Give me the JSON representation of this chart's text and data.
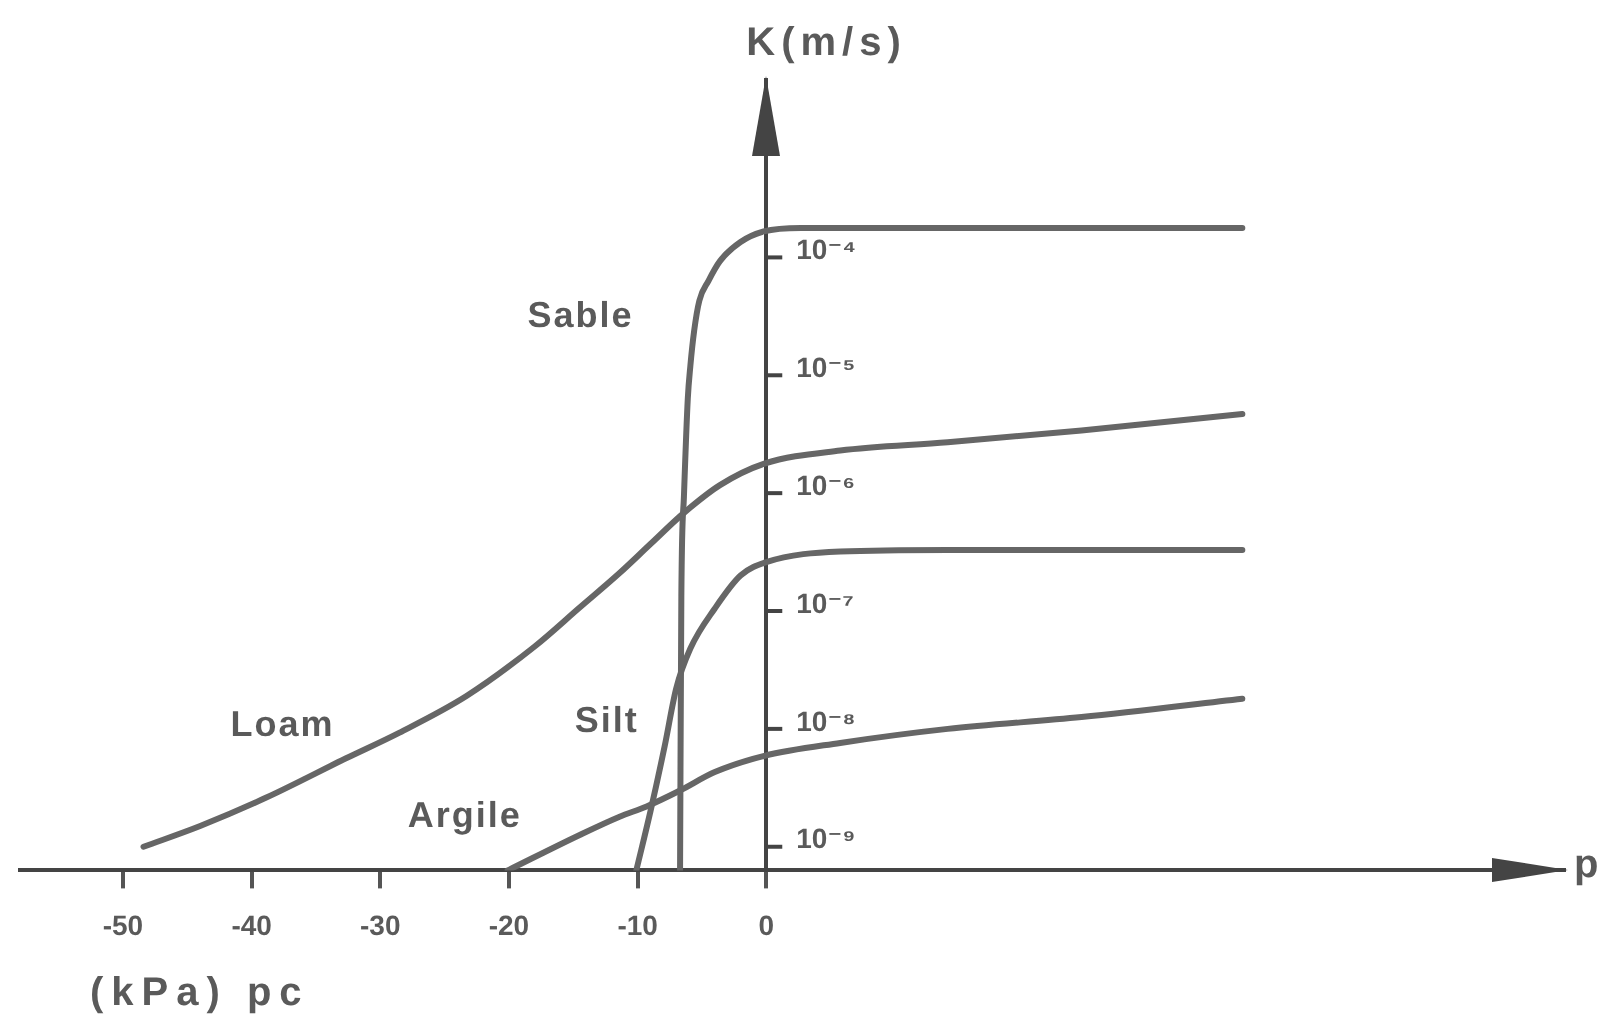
{
  "chart_data": {
    "type": "line",
    "xlabel": "(kPa) pc",
    "ylabel": "K(m/s)",
    "annotations": [
      "p"
    ],
    "xlim": [
      -58,
      62
    ],
    "xticks": [
      -50,
      -40,
      -30,
      -20,
      -10,
      0
    ],
    "ylim": [
      6.3e-10,
      0.0032
    ],
    "log": true,
    "yticks": [
      {
        "value": 1e-09,
        "label": "10⁻⁹"
      },
      {
        "value": 1e-08,
        "label": "10⁻⁸"
      },
      {
        "value": 1e-07,
        "label": "10⁻⁷"
      },
      {
        "value": 1e-06,
        "label": "10⁻⁶"
      },
      {
        "value": 1e-05,
        "label": "10⁻⁵"
      },
      {
        "value": 0.0001,
        "label": "10⁻⁴"
      }
    ],
    "marker": "none",
    "series": [
      {
        "name": "Sable",
        "color": "#666666",
        "x": [
          -6.7,
          -6.6,
          -6.4,
          -6.1,
          -5.9,
          -5.6,
          -5.2,
          -4.5,
          -3.6,
          -2.0,
          -0.2,
          2.7,
          37
        ],
        "values": [
          6.3e-10,
          1.35e-07,
          9.3e-07,
          6.3e-06,
          1.2e-05,
          2.4e-05,
          4.3e-05,
          6.3e-05,
          9.3e-05,
          0.000135,
          0.000166,
          0.000178,
          0.000178
        ]
      },
      {
        "name": "Loam",
        "color": "#666666",
        "x": [
          -48.4,
          -44.0,
          -38.9,
          -32.7,
          -28.5,
          -23.3,
          -18.0,
          -14.5,
          -11.4,
          -9.0,
          -6.4,
          -3.6,
          -0.15,
          5.75,
          14.1,
          24.5,
          37
        ],
        "values": [
          1e-09,
          1.5e-09,
          2.6e-09,
          5.6e-09,
          9.3e-09,
          1.9e-08,
          5e-08,
          1.07e-07,
          2.1e-07,
          3.7e-07,
          6.8e-07,
          1.17e-06,
          1.78e-06,
          2.3e-06,
          2.7e-06,
          3.4e-06,
          4.7e-06
        ]
      },
      {
        "name": "Silt",
        "color": "#666666",
        "x": [
          -10.1,
          -9.0,
          -7.9,
          -7.0,
          -5.9,
          -4.0,
          -2.0,
          0,
          5.75,
          14.1,
          37
        ],
        "values": [
          6.3e-10,
          2e-09,
          7.1e-09,
          2.2e-08,
          4.8e-08,
          1.05e-07,
          2e-07,
          2.6e-07,
          3.2e-07,
          3.3e-07,
          3.3e-07
        ]
      },
      {
        "name": "Argile",
        "color": "#666666",
        "x": [
          -20.1,
          -14.5,
          -11.4,
          -9.3,
          -6.7,
          -4.0,
          -0.15,
          5.75,
          14.1,
          24.5,
          37
        ],
        "values": [
          6.3e-10,
          1.26e-09,
          1.8e-09,
          2.2e-09,
          3e-09,
          4.3e-09,
          5.9e-09,
          7.6e-09,
          1e-08,
          1.26e-08,
          1.8e-08
        ]
      }
    ]
  }
}
